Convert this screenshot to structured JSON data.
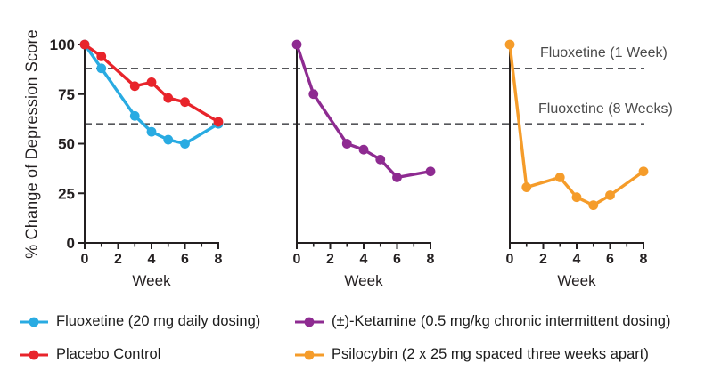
{
  "axes": {
    "ylabel": "% Change of Depression Score",
    "xlabel": "Week",
    "yticks": [
      0,
      25,
      50,
      75,
      100
    ],
    "xticks_major": [
      0,
      2,
      4,
      6,
      8
    ],
    "xticks_minor": [
      1,
      3,
      5,
      7
    ],
    "ylim": [
      0,
      100
    ],
    "xlim": [
      0,
      8
    ]
  },
  "reference_lines": [
    {
      "label": "Fluoxetine (1 Week)",
      "value": 88
    },
    {
      "label": "Fluoxetine (8 Weeks)",
      "value": 60
    }
  ],
  "chart_data": {
    "type": "line",
    "title": "",
    "xlabel": "Week",
    "ylabel": "% Change of Depression Score",
    "x_weeks": [
      0,
      1,
      3,
      4,
      5,
      6,
      8
    ],
    "ylim": [
      0,
      100
    ],
    "xlim": [
      0,
      8
    ],
    "grid": false,
    "legend_position": "bottom",
    "panels": [
      {
        "series": [
          {
            "name": "Fluoxetine (20 mg daily dosing)",
            "color_key": "fluoxetine",
            "values": [
              100,
              88,
              64,
              56,
              52,
              50,
              60
            ]
          },
          {
            "name": "Placebo Control",
            "color_key": "placebo",
            "values": [
              100,
              94,
              79,
              81,
              73,
              71,
              61
            ]
          }
        ]
      },
      {
        "series": [
          {
            "name": "(±)-Ketamine (0.5 mg/kg chronic intermittent dosing)",
            "color_key": "ketamine",
            "values": [
              100,
              75,
              50,
              47,
              42,
              33,
              36
            ]
          }
        ]
      },
      {
        "series": [
          {
            "name": "Psilocybin (2 x 25 mg spaced three weeks apart)",
            "color_key": "psilocybin",
            "values": [
              100,
              28,
              33,
              23,
              19,
              24,
              36
            ]
          }
        ]
      }
    ]
  },
  "colors": {
    "fluoxetine": "#29ABE2",
    "placebo": "#E8242B",
    "ketamine": "#8E2B91",
    "psilocybin": "#F59C2A",
    "axis": "#231F20",
    "dashed_line": "#55565A",
    "ref_label": "#4A4A4A"
  },
  "legend": {
    "items": [
      {
        "label": "Fluoxetine (20 mg daily dosing)",
        "color_key": "fluoxetine"
      },
      {
        "label": "Placebo Control",
        "color_key": "placebo"
      },
      {
        "label": "(±)-Ketamine (0.5 mg/kg chronic intermittent dosing)",
        "color_key": "ketamine"
      },
      {
        "label": "Psilocybin (2 x 25 mg spaced three weeks apart)",
        "color_key": "psilocybin"
      }
    ]
  }
}
